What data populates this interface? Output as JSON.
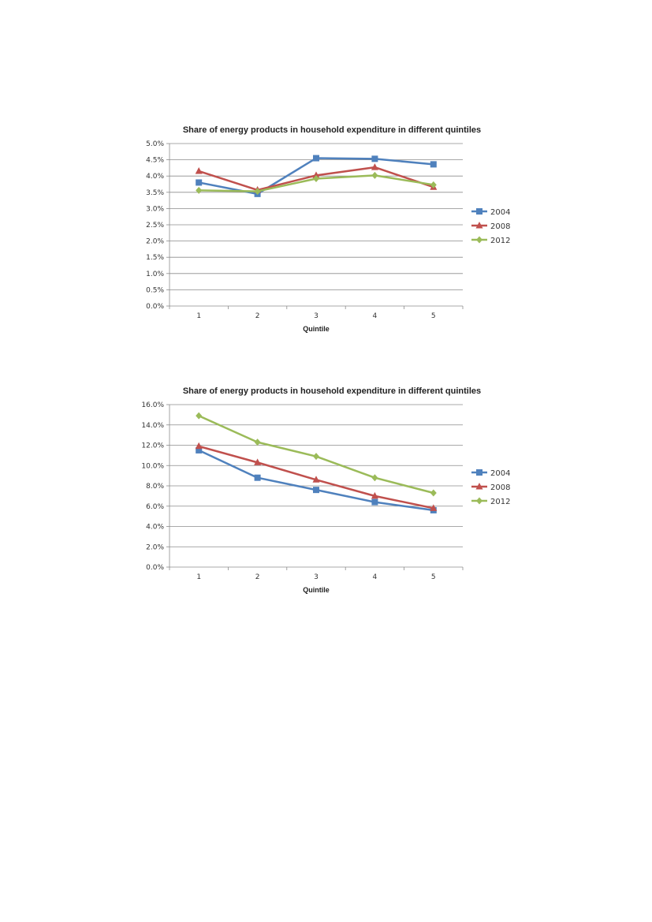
{
  "chart_data": [
    {
      "type": "line",
      "title": "Share of energy products in household expenditure in different quintiles",
      "xlabel": "Quintile",
      "ylabel": "",
      "categories": [
        "1",
        "2",
        "3",
        "4",
        "5"
      ],
      "ylim": [
        0,
        0.05
      ],
      "yticks": [
        "0.0%",
        "0.5%",
        "1.0%",
        "1.5%",
        "2.0%",
        "2.5%",
        "3.0%",
        "3.5%",
        "4.0%",
        "4.5%",
        "5.0%"
      ],
      "grid": true,
      "legend_position": "right",
      "series": [
        {
          "name": "2004",
          "values": [
            0.038,
            0.0345,
            0.0455,
            0.0453,
            0.0436
          ],
          "color": "#4F81BD",
          "marker": "square"
        },
        {
          "name": "2008",
          "values": [
            0.0415,
            0.0357,
            0.0402,
            0.0427,
            0.0366
          ],
          "color": "#C0504D",
          "marker": "triangle"
        },
        {
          "name": "2012",
          "values": [
            0.0356,
            0.0353,
            0.0392,
            0.0402,
            0.0373
          ],
          "color": "#9BBB59",
          "marker": "diamond"
        }
      ]
    },
    {
      "type": "line",
      "title": "Share of energy products in household expenditure in different quintiles",
      "xlabel": "Quintile",
      "ylabel": "",
      "categories": [
        "1",
        "2",
        "3",
        "4",
        "5"
      ],
      "ylim": [
        0,
        0.16
      ],
      "yticks": [
        "0.0%",
        "2.0%",
        "4.0%",
        "6.0%",
        "8.0%",
        "10.0%",
        "12.0%",
        "14.0%",
        "16.0%"
      ],
      "grid": true,
      "legend_position": "right",
      "series": [
        {
          "name": "2004",
          "values": [
            0.115,
            0.088,
            0.076,
            0.064,
            0.056
          ],
          "color": "#4F81BD",
          "marker": "square"
        },
        {
          "name": "2008",
          "values": [
            0.119,
            0.103,
            0.086,
            0.07,
            0.058
          ],
          "color": "#C0504D",
          "marker": "triangle"
        },
        {
          "name": "2012",
          "values": [
            0.149,
            0.123,
            0.109,
            0.088,
            0.073
          ],
          "color": "#9BBB59",
          "marker": "diamond"
        }
      ]
    }
  ]
}
